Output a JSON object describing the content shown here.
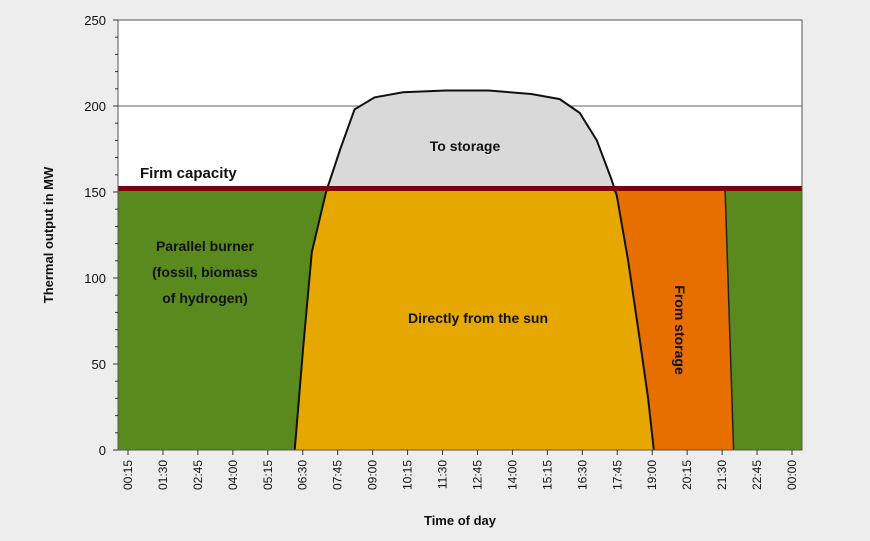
{
  "chart_data": {
    "type": "area",
    "title": "",
    "xlabel": "Time of day",
    "ylabel": "Thermal output in MW",
    "ylim": [
      0,
      250
    ],
    "yticks": [
      0,
      50,
      100,
      150,
      200,
      250
    ],
    "xticks": [
      "00:15",
      "01:30",
      "02:45",
      "04:00",
      "05:15",
      "06:30",
      "07:45",
      "09:00",
      "10:15",
      "11:30",
      "12:45",
      "14:00",
      "15:15",
      "16:30",
      "17:45",
      "19:00",
      "20:15",
      "21:30",
      "22:45",
      "00:00"
    ],
    "grid": "horizontal",
    "firm_capacity": 152,
    "firm_capacity_label": "Firm capacity",
    "regions": [
      {
        "name": "Parallel burner\n(fossil, biomass\nof hydrogen)",
        "color": "#5a8a1e"
      },
      {
        "name": "Directly from the sun",
        "color": "#e6a800"
      },
      {
        "name": "To storage",
        "color": "#d9d9d9"
      },
      {
        "name": "From storage",
        "color": "#e66f00"
      }
    ],
    "solar_curve": [
      {
        "x": 6.2,
        "y": 0
      },
      {
        "x": 6.5,
        "y": 60
      },
      {
        "x": 6.8,
        "y": 115
      },
      {
        "x": 7.3,
        "y": 150
      },
      {
        "x": 7.8,
        "y": 175
      },
      {
        "x": 8.3,
        "y": 198
      },
      {
        "x": 9.0,
        "y": 205
      },
      {
        "x": 10.0,
        "y": 208
      },
      {
        "x": 11.5,
        "y": 209
      },
      {
        "x": 13.0,
        "y": 209
      },
      {
        "x": 14.5,
        "y": 207
      },
      {
        "x": 15.5,
        "y": 204
      },
      {
        "x": 16.2,
        "y": 196
      },
      {
        "x": 16.8,
        "y": 180
      },
      {
        "x": 17.3,
        "y": 158
      },
      {
        "x": 17.5,
        "y": 148
      },
      {
        "x": 17.9,
        "y": 110
      },
      {
        "x": 18.3,
        "y": 65
      },
      {
        "x": 18.6,
        "y": 30
      },
      {
        "x": 18.8,
        "y": 0
      }
    ],
    "from_storage_band": {
      "top_left": 17.5,
      "top_right": 21.3,
      "bottom_right": 21.6
    }
  }
}
